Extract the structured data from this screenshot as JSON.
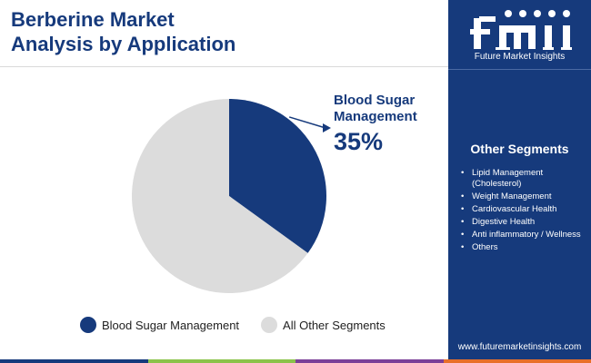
{
  "header": {
    "title_line1": "Berberine Market",
    "title_line2": "Analysis by Application"
  },
  "chart_data": {
    "type": "pie",
    "slices": [
      {
        "label": "Blood Sugar Management",
        "value": 35,
        "color": "#163a7c"
      },
      {
        "label": "All Other Segments",
        "value": 65,
        "color": "#dcdcdc"
      }
    ],
    "callout": {
      "label_line1": "Blood Sugar",
      "label_line2": "Management",
      "value_text": "35%"
    },
    "legend": [
      {
        "label": "Blood Sugar Management",
        "color": "#163a7c"
      },
      {
        "label": "All Other Segments",
        "color": "#dcdcdc"
      }
    ],
    "legend_position": "bottom"
  },
  "sidebar": {
    "logo_sub": "Future Market Insights",
    "segments_title": "Other Segments",
    "segments": [
      "Lipid Management (Cholesterol)",
      "Weight Management",
      "Cardiovascular Health",
      "Digestive Health",
      "Anti inflammatory / Wellness",
      "Others"
    ],
    "website": "www.futuremarketinsights.com"
  },
  "colors": {
    "brand_navy": "#163a7c",
    "bottom_bar": [
      "#163a7c",
      "#8bc34a",
      "#7b3f98",
      "#e8702a"
    ]
  }
}
